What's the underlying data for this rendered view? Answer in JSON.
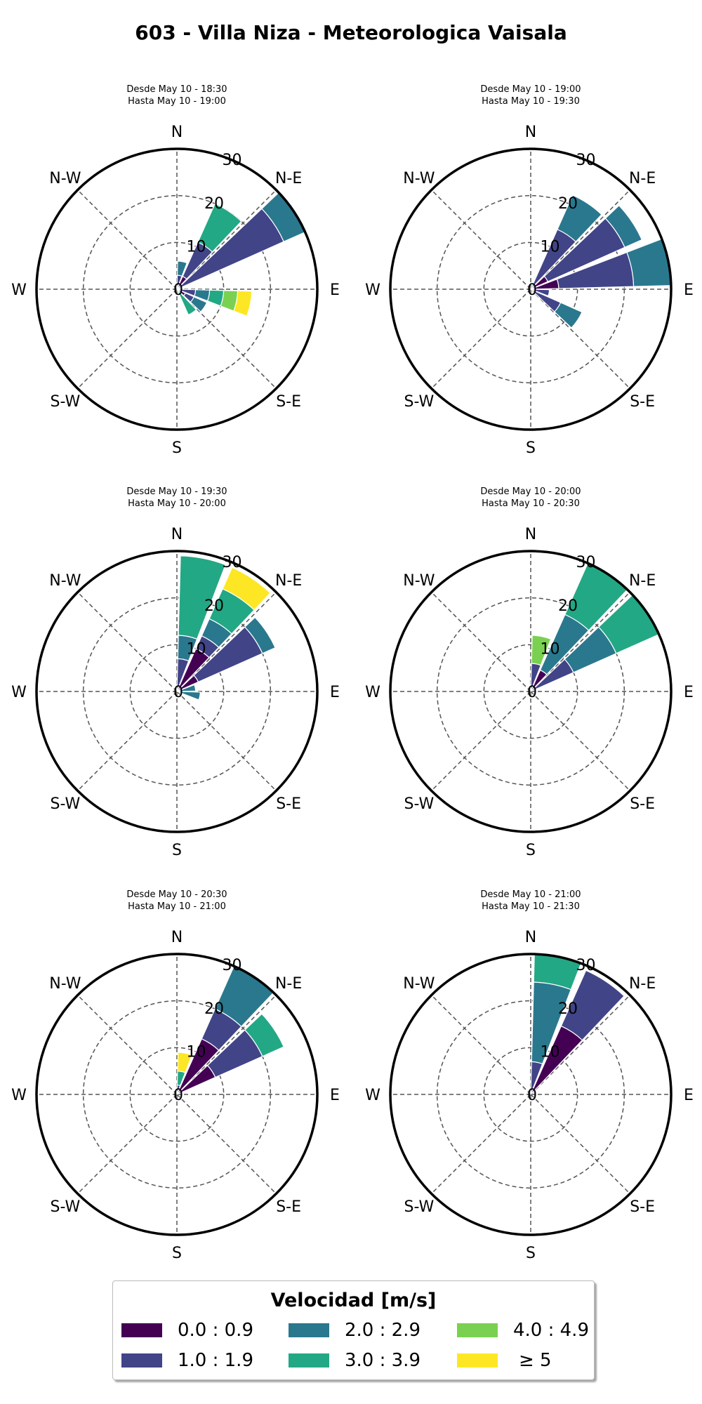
{
  "title": "603 - Villa Niza - Meteorologica Vaisala",
  "colors": {
    "bins": [
      "#440154",
      "#414487",
      "#2a788e",
      "#22a884",
      "#7ad151",
      "#fde725"
    ],
    "grid": "#555555",
    "frame": "#000000"
  },
  "legend": {
    "title": "Velocidad [m/s]",
    "items": [
      "0.0 : 0.9",
      "1.0 : 1.9",
      "2.0 : 2.9",
      "3.0 : 3.9",
      "4.0 : 4.9",
      "≥ 5"
    ]
  },
  "chart_data": [
    {
      "type": "windrose",
      "title_line1": "Desde May 10 - 18:30",
      "title_line2": "Hasta May 10 - 19:00",
      "direction_labels": [
        "N",
        "N-E",
        "E",
        "S-E",
        "S",
        "S-W",
        "W",
        "N-W"
      ],
      "radial_ticks": [
        "0",
        "10",
        "20",
        "30"
      ],
      "rmax": 30,
      "sectors": [
        {
          "direction": 11.25,
          "stack": [
            0,
            3,
            6,
            0,
            0,
            0
          ]
        },
        {
          "direction": 33.75,
          "stack": [
            3,
            11,
            0,
            20,
            0,
            0
          ]
        },
        {
          "direction": 56.25,
          "stack": [
            0,
            25,
            30,
            0,
            0,
            0
          ]
        },
        {
          "direction": 101.25,
          "stack": [
            0,
            4,
            7,
            10,
            13,
            16
          ]
        },
        {
          "direction": 123.75,
          "stack": [
            2,
            4,
            7,
            0,
            0,
            0
          ]
        },
        {
          "direction": 146.25,
          "stack": [
            0,
            0,
            0,
            6,
            0,
            0
          ]
        }
      ]
    },
    {
      "type": "windrose",
      "title_line1": "Desde May 10 - 19:00",
      "title_line2": "Hasta May 10 - 19:30",
      "direction_labels": [
        "N",
        "N-E",
        "E",
        "S-E",
        "S",
        "S-W",
        "W",
        "N-W"
      ],
      "radial_ticks": [
        "0",
        "10",
        "20",
        "30"
      ],
      "rmax": 30,
      "sectors": [
        {
          "direction": 33.75,
          "stack": [
            0,
            14,
            22,
            0,
            0,
            0
          ]
        },
        {
          "direction": 56.25,
          "stack": [
            4,
            22,
            26,
            0,
            0,
            0
          ]
        },
        {
          "direction": 78.75,
          "stack": [
            6,
            22,
            30,
            0,
            0,
            0
          ]
        },
        {
          "direction": 101.25,
          "stack": [
            0,
            4,
            0,
            0,
            0,
            0
          ]
        },
        {
          "direction": 123.75,
          "stack": [
            0,
            7,
            12,
            0,
            0,
            0
          ]
        }
      ]
    },
    {
      "type": "windrose",
      "title_line1": "Desde May 10 - 19:30",
      "title_line2": "Hasta May 10 - 20:00",
      "direction_labels": [
        "N",
        "N-E",
        "E",
        "S-E",
        "S",
        "S-W",
        "W",
        "N-W"
      ],
      "radial_ticks": [
        "0",
        "10",
        "20",
        "30"
      ],
      "rmax": 30,
      "sectors": [
        {
          "direction": 11.25,
          "stack": [
            0,
            7,
            12,
            29,
            0,
            0
          ]
        },
        {
          "direction": 33.75,
          "stack": [
            10,
            13,
            17,
            24,
            0,
            29
          ]
        },
        {
          "direction": 56.25,
          "stack": [
            5,
            20,
            23,
            0,
            0,
            0
          ]
        },
        {
          "direction": 78.75,
          "stack": [
            0,
            0,
            4,
            0,
            0,
            0
          ]
        },
        {
          "direction": 101.25,
          "stack": [
            0,
            0,
            5,
            0,
            0,
            0
          ]
        }
      ]
    },
    {
      "type": "windrose",
      "title_line1": "Desde May 10 - 20:00",
      "title_line2": "Hasta May 10 - 20:30",
      "direction_labels": [
        "N",
        "N-E",
        "E",
        "S-E",
        "S",
        "S-W",
        "W",
        "N-W"
      ],
      "radial_ticks": [
        "0",
        "10",
        "20",
        "30"
      ],
      "rmax": 30,
      "sectors": [
        {
          "direction": 11.25,
          "stack": [
            0,
            6,
            0,
            0,
            12,
            0
          ]
        },
        {
          "direction": 33.75,
          "stack": [
            5,
            0,
            18,
            30,
            0,
            0
          ]
        },
        {
          "direction": 56.25,
          "stack": [
            0,
            10,
            20,
            30,
            0,
            0
          ]
        }
      ]
    },
    {
      "type": "windrose",
      "title_line1": "Desde May 10 - 20:30",
      "title_line2": "Hasta May 10 - 21:00",
      "direction_labels": [
        "N",
        "N-E",
        "E",
        "S-E",
        "S",
        "S-W",
        "W",
        "N-W"
      ],
      "radial_ticks": [
        "0",
        "10",
        "20",
        "30"
      ],
      "rmax": 30,
      "sectors": [
        {
          "direction": 11.25,
          "stack": [
            0,
            2,
            0,
            5,
            0,
            9
          ]
        },
        {
          "direction": 33.75,
          "stack": [
            13,
            20,
            30,
            0,
            0,
            0
          ]
        },
        {
          "direction": 56.25,
          "stack": [
            9,
            20,
            0,
            25,
            0,
            0
          ]
        }
      ]
    },
    {
      "type": "windrose",
      "title_line1": "Desde May 10 - 21:00",
      "title_line2": "Hasta May 10 - 21:30",
      "direction_labels": [
        "N",
        "N-E",
        "E",
        "S-E",
        "S",
        "S-W",
        "W",
        "N-W"
      ],
      "radial_ticks": [
        "0",
        "10",
        "20",
        "30"
      ],
      "rmax": 30,
      "sectors": [
        {
          "direction": 11.25,
          "stack": [
            0,
            7,
            24,
            30,
            0,
            0
          ]
        },
        {
          "direction": 33.75,
          "stack": [
            16,
            29,
            0,
            0,
            0,
            0
          ]
        }
      ]
    }
  ]
}
